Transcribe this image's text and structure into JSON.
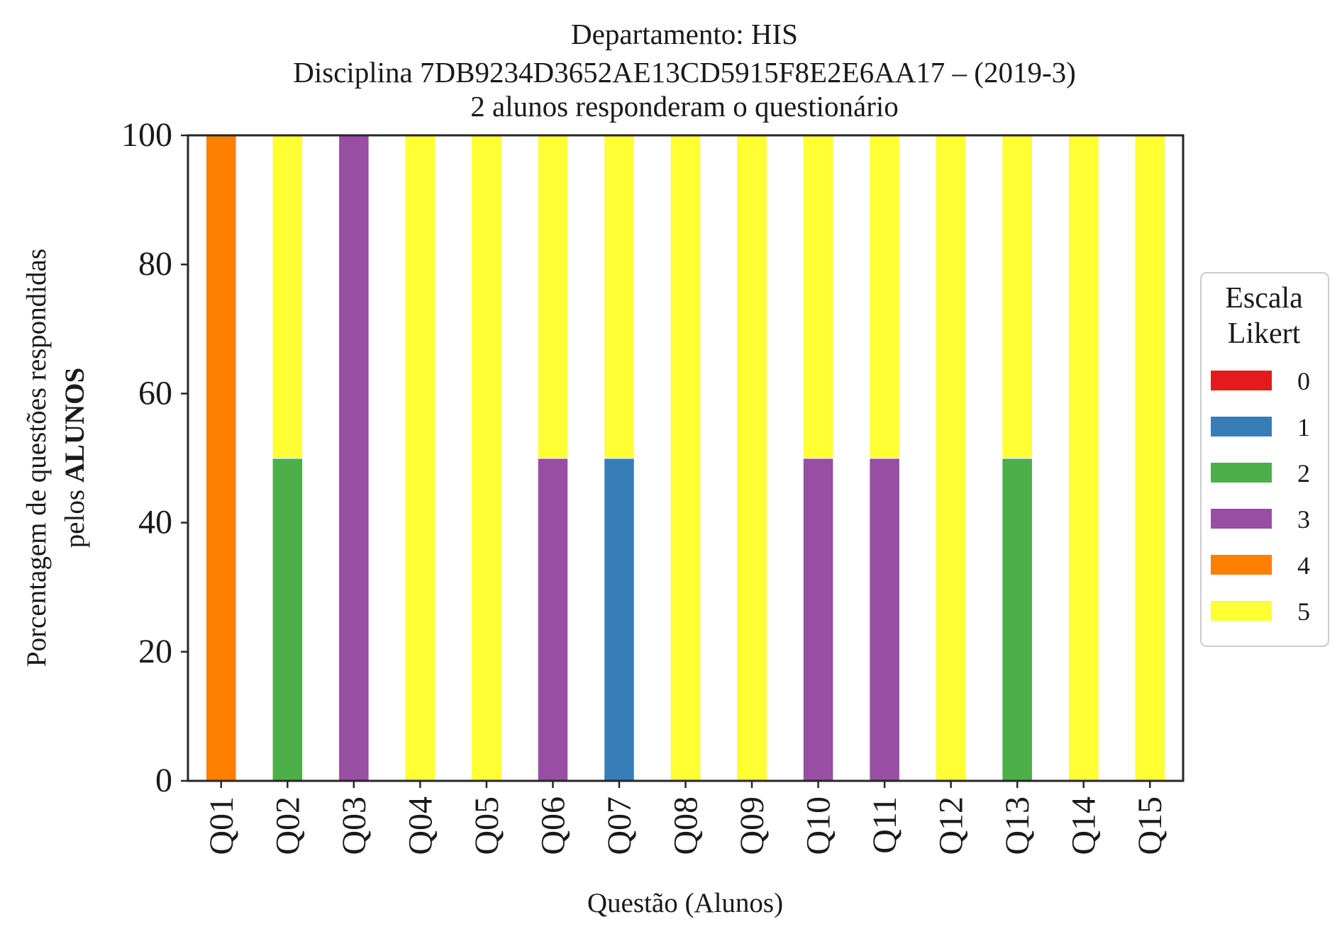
{
  "chart_data": {
    "type": "bar",
    "stacked": true,
    "title_lines": [
      "Departamento: HIS",
      "Disciplina 7DB9234D3652AE13CD5915F8E2E6AA17 – (2019-3)",
      "2 alunos responderam o questionário"
    ],
    "xlabel": "Questão (Alunos)",
    "ylabel_line1": "Porcentagem de questões respondidas",
    "ylabel_line2_prefix": "pelos ",
    "ylabel_line2_bold": "ALUNOS",
    "ylim": [
      0,
      100
    ],
    "yticks": [
      0,
      20,
      40,
      60,
      80,
      100
    ],
    "ytick_labels": [
      "0",
      "20",
      "40",
      "60",
      "80",
      "100"
    ],
    "grid": false,
    "categories": [
      "Q01",
      "Q02",
      "Q03",
      "Q04",
      "Q05",
      "Q06",
      "Q07",
      "Q08",
      "Q09",
      "Q10",
      "Q11",
      "Q12",
      "Q13",
      "Q14",
      "Q15"
    ],
    "legend": {
      "title_lines": [
        "Escala",
        "Likert"
      ],
      "placement": "right-center"
    },
    "series": [
      {
        "name": "0",
        "color": "#e41a1c",
        "values": [
          0,
          0,
          0,
          0,
          0,
          0,
          0,
          0,
          0,
          0,
          0,
          0,
          0,
          0,
          0
        ]
      },
      {
        "name": "1",
        "color": "#377eb8",
        "values": [
          0,
          0,
          0,
          0,
          0,
          0,
          50,
          0,
          0,
          0,
          0,
          0,
          0,
          0,
          0
        ]
      },
      {
        "name": "2",
        "color": "#4daf4a",
        "values": [
          0,
          50,
          0,
          0,
          0,
          0,
          0,
          0,
          0,
          0,
          0,
          0,
          50,
          0,
          0
        ]
      },
      {
        "name": "3",
        "color": "#984ea3",
        "values": [
          0,
          0,
          100,
          0,
          0,
          50,
          0,
          0,
          0,
          50,
          50,
          0,
          0,
          0,
          0
        ]
      },
      {
        "name": "4",
        "color": "#ff7f00",
        "values": [
          100,
          0,
          0,
          0,
          0,
          0,
          0,
          0,
          0,
          0,
          0,
          0,
          0,
          0,
          0
        ]
      },
      {
        "name": "5",
        "color": "#ffff33",
        "values": [
          0,
          50,
          0,
          100,
          100,
          50,
          50,
          100,
          100,
          50,
          50,
          100,
          50,
          100,
          100
        ]
      }
    ]
  }
}
